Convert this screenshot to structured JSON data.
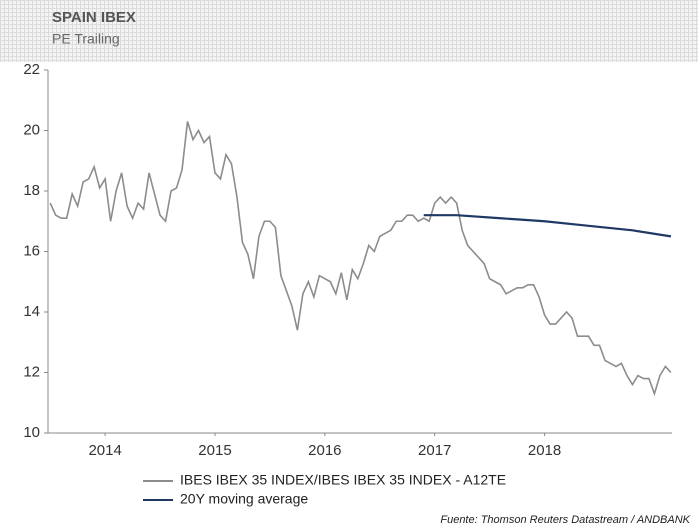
{
  "chart_data": {
    "type": "line",
    "title": "SPAIN IBEX",
    "subtitle": "PE Trailing",
    "source": "Fuente: Thomson Reuters Datastream / ANDBANK",
    "xlim": [
      2013.48,
      2019.16
    ],
    "xticks": [
      2014,
      2015,
      2016,
      2017,
      2018
    ],
    "ylim": [
      10,
      22
    ],
    "yticks": [
      10,
      12,
      14,
      16,
      18,
      20,
      22
    ],
    "series": [
      {
        "name": "IBES IBEX 35 INDEX/IBES IBEX 35 INDEX - A12TE",
        "color": "#8c8c8c",
        "x": [
          2013.5,
          2013.55,
          2013.6,
          2013.65,
          2013.7,
          2013.75,
          2013.8,
          2013.85,
          2013.9,
          2013.95,
          2014.0,
          2014.05,
          2014.1,
          2014.15,
          2014.2,
          2014.25,
          2014.3,
          2014.35,
          2014.4,
          2014.45,
          2014.5,
          2014.55,
          2014.6,
          2014.65,
          2014.7,
          2014.75,
          2014.8,
          2014.85,
          2014.9,
          2014.95,
          2015.0,
          2015.05,
          2015.1,
          2015.15,
          2015.2,
          2015.25,
          2015.3,
          2015.35,
          2015.4,
          2015.45,
          2015.5,
          2015.55,
          2015.6,
          2015.65,
          2015.7,
          2015.75,
          2015.8,
          2015.85,
          2015.9,
          2015.95,
          2016.0,
          2016.05,
          2016.1,
          2016.15,
          2016.2,
          2016.25,
          2016.3,
          2016.35,
          2016.4,
          2016.45,
          2016.5,
          2016.55,
          2016.6,
          2016.65,
          2016.7,
          2016.75,
          2016.8,
          2016.85,
          2016.9,
          2016.95,
          2017.0,
          2017.05,
          2017.1,
          2017.15,
          2017.2,
          2017.25,
          2017.3,
          2017.35,
          2017.4,
          2017.45,
          2017.5,
          2017.55,
          2017.6,
          2017.65,
          2017.7,
          2017.75,
          2017.8,
          2017.85,
          2017.9,
          2017.95,
          2018.0,
          2018.05,
          2018.1,
          2018.15,
          2018.2,
          2018.25,
          2018.3,
          2018.35,
          2018.4,
          2018.45,
          2018.5,
          2018.55,
          2018.6,
          2018.65,
          2018.7,
          2018.75,
          2018.8,
          2018.85,
          2018.9,
          2018.95,
          2019.0,
          2019.05,
          2019.1,
          2019.15
        ],
        "values": [
          17.6,
          17.2,
          17.1,
          17.1,
          17.9,
          17.5,
          18.3,
          18.4,
          18.8,
          18.1,
          18.4,
          17.0,
          18.0,
          18.6,
          17.5,
          17.1,
          17.6,
          17.4,
          18.6,
          17.9,
          17.2,
          17.0,
          18.0,
          18.1,
          18.7,
          20.3,
          19.7,
          20.0,
          19.6,
          19.8,
          18.6,
          18.4,
          19.2,
          18.9,
          17.8,
          16.3,
          15.9,
          15.1,
          16.5,
          17.0,
          17.0,
          16.8,
          15.2,
          14.7,
          14.2,
          13.4,
          14.6,
          15.0,
          14.5,
          15.2,
          15.1,
          15.0,
          14.6,
          15.3,
          14.4,
          15.4,
          15.1,
          15.6,
          16.2,
          16.0,
          16.5,
          16.6,
          16.7,
          17.0,
          17.0,
          17.2,
          17.2,
          17.0,
          17.1,
          17.0,
          17.6,
          17.8,
          17.6,
          17.8,
          17.6,
          16.7,
          16.2,
          16.0,
          15.8,
          15.6,
          15.1,
          15.0,
          14.9,
          14.6,
          14.7,
          14.8,
          14.8,
          14.9,
          14.9,
          14.5,
          13.9,
          13.6,
          13.6,
          13.8,
          14.0,
          13.8,
          13.2,
          13.2,
          13.2,
          12.9,
          12.9,
          12.4,
          12.3,
          12.2,
          12.3,
          11.9,
          11.6,
          11.9,
          11.8,
          11.8,
          11.3,
          11.9,
          12.2,
          12.0
        ]
      },
      {
        "name": "20Y moving average",
        "color": "#1f3864",
        "x": [
          2016.9,
          2017.2,
          2017.6,
          2018.0,
          2018.4,
          2018.8,
          2019.15
        ],
        "values": [
          17.2,
          17.2,
          17.1,
          17.0,
          16.85,
          16.7,
          16.5
        ]
      }
    ]
  }
}
